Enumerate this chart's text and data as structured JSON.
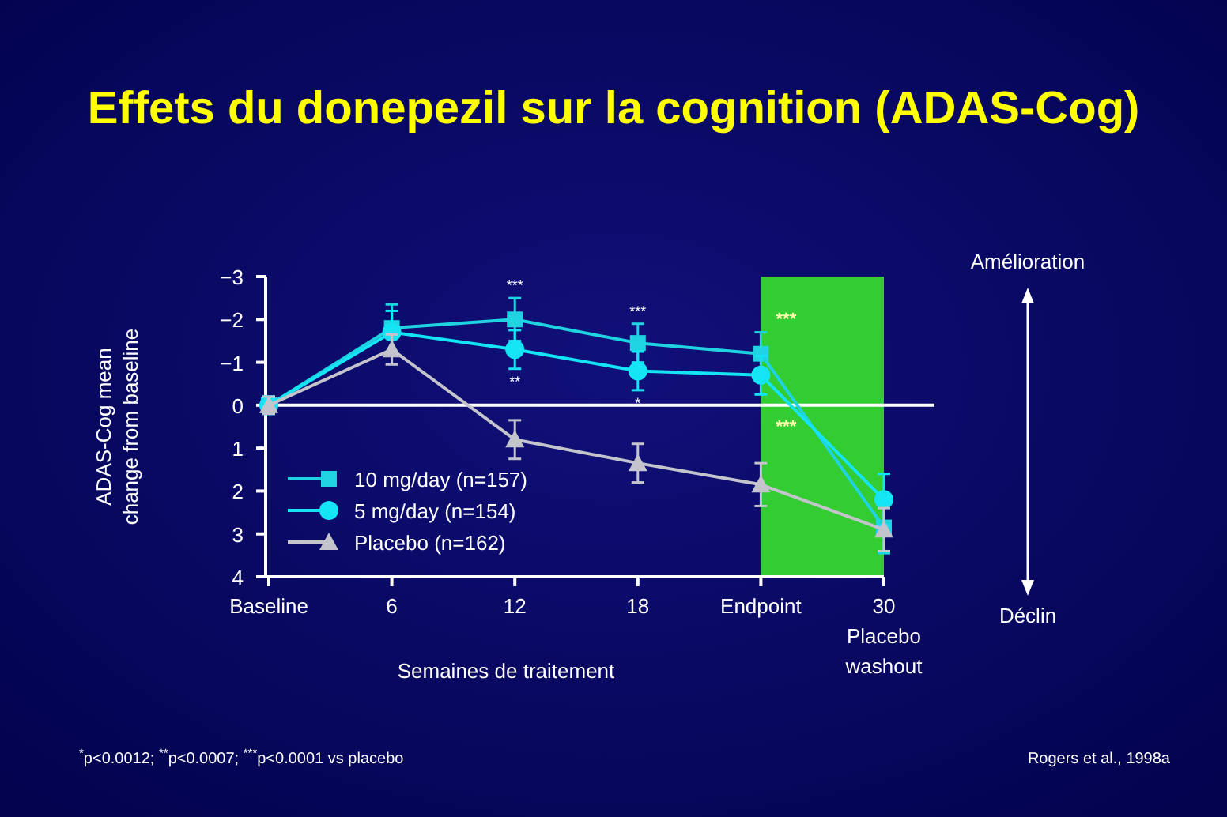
{
  "chart_data": {
    "type": "line",
    "title": "Effets du donepezil sur la cognition (ADAS-Cog)",
    "xlabel": "Semaines de traitement",
    "ylabel": "ADAS-Cog mean change from baseline",
    "x": [
      0,
      6,
      12,
      18,
      24,
      30
    ],
    "xlim": [
      0,
      30
    ],
    "xticks": [
      {
        "value": 0,
        "label": "Baseline"
      },
      6,
      12,
      18,
      {
        "value": 24,
        "label": "Endpoint"
      },
      {
        "value": 30,
        "label": "30\nPlacebo\nwashout"
      }
    ],
    "ylim": [
      4,
      -3
    ],
    "yticks": [
      {
        "value": -3,
        "label": "−3"
      },
      {
        "value": -2,
        "label": "−2"
      },
      {
        "value": -1,
        "label": "−1"
      },
      0,
      1,
      2,
      3,
      4
    ],
    "series": [
      {
        "name": "10 mg/day (n=157)",
        "color": "#1fd3e0",
        "marker": "square",
        "values": [
          0,
          -1.8,
          -2.0,
          -1.45,
          -1.2,
          2.85
        ],
        "errors": [
          0.2,
          0.55,
          0.5,
          0.45,
          0.5,
          0.6
        ]
      },
      {
        "name": "5 mg/day (n=154)",
        "color": "#14e4f4",
        "marker": "circle",
        "values": [
          0,
          -1.7,
          -1.3,
          -0.8,
          -0.7,
          2.2
        ],
        "errors": [
          0.2,
          0.5,
          0.45,
          0.45,
          0.45,
          0.6
        ]
      },
      {
        "name": "Placebo (n=162)",
        "color": "#c4c4cc",
        "marker": "triangle",
        "values": [
          0,
          -1.3,
          0.8,
          1.35,
          1.85,
          2.9
        ],
        "errors": [
          0.2,
          0.35,
          0.45,
          0.45,
          0.5,
          0.5
        ]
      }
    ],
    "bands": [
      {
        "axis": "x",
        "from": 24,
        "to": 30,
        "color": "#33cc33"
      }
    ],
    "ref_lines": [
      {
        "axis": "y",
        "value": 0,
        "color": "#ffffff"
      }
    ],
    "legend": "bottom left",
    "annotations": [
      {
        "text": "***",
        "x": 12,
        "y": -2.0
      },
      {
        "text": "**",
        "x": 12,
        "y": -1.3
      },
      {
        "text": "***",
        "x": 18,
        "y": -1.45
      },
      {
        "text": "*",
        "x": 18,
        "y": -0.8
      },
      {
        "text": "***",
        "x": 24,
        "y": -1.2
      },
      {
        "text": "***",
        "x": 24,
        "y": -0.7
      },
      "Amélioration",
      "Déclin",
      "$^{*}$p<0.0012; $^{**}$p<0.0007; $^{***}$p<0.0001 vs placebo",
      "Rogers et al., 1998a"
    ]
  }
}
